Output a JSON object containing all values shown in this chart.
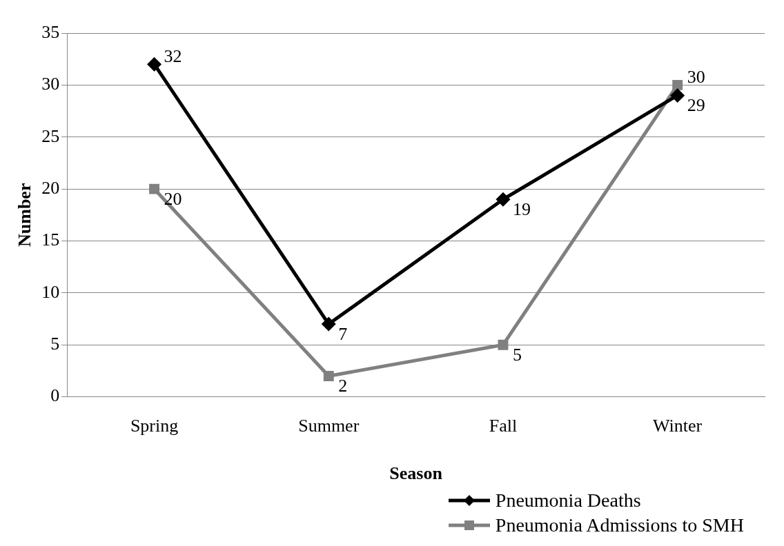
{
  "chart_data": {
    "type": "line",
    "xlabel": "Season",
    "ylabel": "Number",
    "categories": [
      "Spring",
      "Summer",
      "Fall",
      "Winter"
    ],
    "series": [
      {
        "name": "Pneumonia Deaths",
        "color": "#000000",
        "marker": "diamond",
        "values": [
          32,
          7,
          19,
          29
        ]
      },
      {
        "name": "Pneumonia Admissions to SMH",
        "color": "#808080",
        "marker": "square",
        "values": [
          20,
          2,
          5,
          30
        ]
      }
    ],
    "ylim": [
      0,
      35
    ],
    "yticks": [
      0,
      5,
      10,
      15,
      20,
      25,
      30,
      35
    ],
    "grid": "y",
    "legend": "bottom right",
    "data_labels": true,
    "line_style": "solid"
  }
}
